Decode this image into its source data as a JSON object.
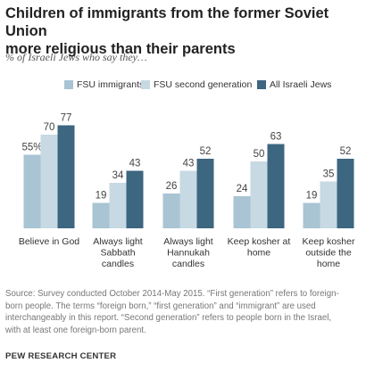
{
  "title_lines": [
    "Children of immigrants from the former Soviet Union",
    "more religious than their parents"
  ],
  "subtitle": "% of Israeli Jews who say they…",
  "chart_data": {
    "type": "bar",
    "categories": [
      [
        "Believe in God"
      ],
      [
        "Always light",
        "Sabbath",
        "candles"
      ],
      [
        "Always light",
        "Hannukah",
        "candles"
      ],
      [
        "Keep kosher at",
        "home"
      ],
      [
        "Keep kosher",
        "outside the",
        "home"
      ]
    ],
    "series": [
      {
        "name": "FSU immigrants",
        "color": "#a9c4d3",
        "values": [
          55,
          19,
          26,
          24,
          19
        ],
        "labels": [
          "55%",
          "19",
          "26",
          "24",
          "19"
        ]
      },
      {
        "name": "FSU second generation",
        "color": "#c7d9e3",
        "values": [
          70,
          34,
          43,
          50,
          35
        ],
        "labels": [
          "70",
          "34",
          "43",
          "50",
          "35"
        ]
      },
      {
        "name": "All Israeli Jews",
        "color": "#3d6680",
        "values": [
          77,
          43,
          52,
          63,
          52
        ],
        "labels": [
          "77",
          "43",
          "52",
          "63",
          "52"
        ]
      }
    ],
    "ylim": [
      0,
      100
    ]
  },
  "source_lines": [
    "Source: Survey conducted October 2014-May 2015. “First generation” refers to foreign-",
    "born people. The terms “foreign born,” “first generation” and “immigrant” are used",
    "interchangeably in this report. “Second generation” refers to people born in the Israel,",
    "with at least one foreign-born parent."
  ],
  "brand": "PEW RESEARCH CENTER"
}
